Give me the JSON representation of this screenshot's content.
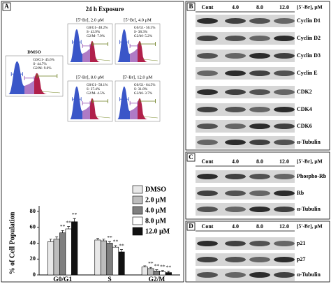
{
  "panel_a": {
    "label": "A",
    "title": "24 h Exposure",
    "histograms": [
      {
        "label": "DMSO",
        "stats": [
          "G0/G1- 45.6%",
          "S- 44.7%",
          "G2/M- 9.6%"
        ]
      },
      {
        "label": "[5'-Br], 2.0 μM",
        "stats": [
          "G0/G1- 48.2%",
          "S- 43.9%",
          "G2/M- 7.9%"
        ]
      },
      {
        "label": "[5'-Br], 4.0 μM",
        "stats": [
          "G0/G1- 56.5%",
          "S- 38.3%",
          "G2/M- 5.2%"
        ]
      },
      {
        "label": "[5'-Br], 8.0 μM",
        "stats": [
          "G0/G1- 58.1%",
          "S- 37.4%",
          "G2/M- 4.5%"
        ]
      },
      {
        "label": "[5'-Br], 12.0 μM",
        "stats": [
          "G0/G1- 64.5%",
          "S- 31.8%",
          "G2/M- 3.7%"
        ]
      }
    ],
    "bar_chart": {
      "type": "bar",
      "y_label": "% of Cell Population",
      "categories": [
        "G0/G1",
        "S",
        "G2/M"
      ],
      "ylim": [
        0,
        80
      ],
      "yticks": [
        0,
        20,
        40,
        60,
        80
      ],
      "series": [
        {
          "name": "DMSO",
          "color": "#e8e8e8",
          "values": [
            42,
            44,
            10
          ],
          "errors": [
            3,
            2,
            1.5
          ],
          "significance": [
            null,
            null,
            null
          ]
        },
        {
          "name": "2.0 μM",
          "color": "#bdbdbd",
          "values": [
            45,
            43,
            8
          ],
          "errors": [
            3,
            2,
            1.5
          ],
          "significance": [
            null,
            null,
            "**"
          ]
        },
        {
          "name": "4.0 μM",
          "color": "#7f7f7f",
          "values": [
            53,
            40,
            5
          ],
          "errors": [
            3,
            2,
            1.5
          ],
          "significance": [
            "**",
            "**",
            "**"
          ]
        },
        {
          "name": "8.0 μM",
          "color": "#ffffff",
          "values": [
            58,
            35,
            4
          ],
          "errors": [
            3,
            2,
            1.5
          ],
          "significance": [
            "**",
            "**",
            "**"
          ]
        },
        {
          "name": "12.0 μM",
          "color": "#111111",
          "values": [
            67,
            29,
            3
          ],
          "errors": [
            4,
            3,
            1.5
          ],
          "significance": [
            "**",
            "**",
            "**"
          ]
        }
      ]
    }
  },
  "panel_b": {
    "label": "B",
    "columns": [
      "Cont",
      "4.0",
      "8.0",
      "12.0"
    ],
    "unit": "[5'-Br], μM",
    "rows": [
      "Cyclin D1",
      "Cyclin D2",
      "Cyclin D3",
      "Cyclin E",
      "CDK2",
      "CDK4",
      "CDK6",
      "α-Tubulin"
    ]
  },
  "panel_c": {
    "label": "C",
    "columns": [
      "Cont",
      "4.0",
      "8.0",
      "12.0"
    ],
    "unit": "[5'-Br], μM",
    "rows": [
      "Phospho-Rb",
      "Rb",
      "α-Tubulin"
    ]
  },
  "panel_d": {
    "label": "D",
    "columns": [
      "Cont",
      "4.0",
      "8.0",
      "12.0"
    ],
    "unit": "[5'-Br], μM",
    "rows": [
      "p21",
      "p27",
      "α-Tubulin"
    ]
  }
}
